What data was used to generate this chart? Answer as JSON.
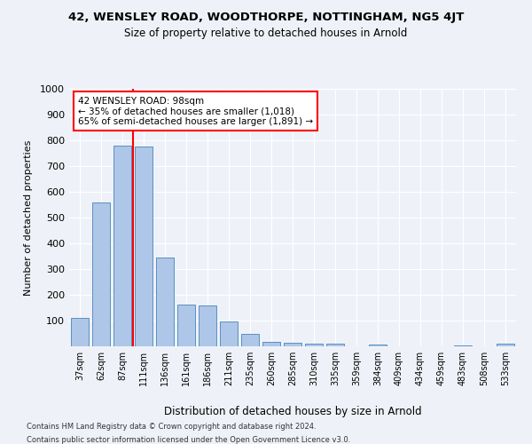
{
  "title1": "42, WENSLEY ROAD, WOODTHORPE, NOTTINGHAM, NG5 4JT",
  "title2": "Size of property relative to detached houses in Arnold",
  "xlabel": "Distribution of detached houses by size in Arnold",
  "ylabel": "Number of detached properties",
  "categories": [
    "37sqm",
    "62sqm",
    "87sqm",
    "111sqm",
    "136sqm",
    "161sqm",
    "186sqm",
    "211sqm",
    "235sqm",
    "260sqm",
    "285sqm",
    "310sqm",
    "335sqm",
    "359sqm",
    "384sqm",
    "409sqm",
    "434sqm",
    "459sqm",
    "483sqm",
    "508sqm",
    "533sqm"
  ],
  "values": [
    112,
    560,
    780,
    775,
    345,
    163,
    160,
    97,
    50,
    18,
    13,
    12,
    10,
    0,
    8,
    0,
    0,
    0,
    5,
    0,
    10
  ],
  "bar_color": "#aec6e8",
  "bar_edge_color": "#5a8fc2",
  "vline_x_idx": 2,
  "vline_color": "red",
  "annotation_text": "42 WENSLEY ROAD: 98sqm\n← 35% of detached houses are smaller (1,018)\n65% of semi-detached houses are larger (1,891) →",
  "annotation_box_color": "white",
  "annotation_box_edge_color": "red",
  "ylim": [
    0,
    1000
  ],
  "yticks": [
    0,
    100,
    200,
    300,
    400,
    500,
    600,
    700,
    800,
    900,
    1000
  ],
  "footer_line1": "Contains HM Land Registry data © Crown copyright and database right 2024.",
  "footer_line2": "Contains public sector information licensed under the Open Government Licence v3.0.",
  "bg_color": "#eef2f8"
}
